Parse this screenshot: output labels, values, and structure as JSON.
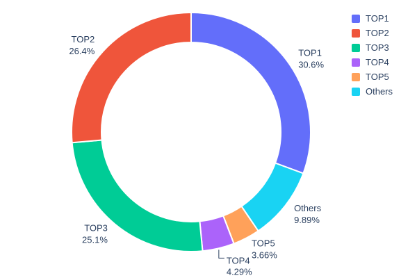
{
  "chart_data": {
    "type": "pie",
    "hole": 0.75,
    "title": "",
    "legend_position": "top-right",
    "label_color": "#2a3f5f",
    "background": "#ffffff",
    "labels": [
      "TOP1",
      "TOP2",
      "TOP3",
      "TOP4",
      "TOP5",
      "Others"
    ],
    "values": [
      30.6,
      26.4,
      25.1,
      4.29,
      3.66,
      9.89
    ],
    "slices": [
      {
        "label": "TOP1",
        "value": 30.6,
        "percent_text": "30.6%",
        "color": "#636efa",
        "connector": false
      },
      {
        "label": "Others",
        "value": 9.89,
        "percent_text": "9.89%",
        "color": "#19d3f3",
        "connector": false
      },
      {
        "label": "TOP5",
        "value": 3.66,
        "percent_text": "3.66%",
        "color": "#ffa15a",
        "connector": false
      },
      {
        "label": "TOP4",
        "value": 4.29,
        "percent_text": "4.29%",
        "color": "#ab63fa",
        "connector": true
      },
      {
        "label": "TOP3",
        "value": 25.1,
        "percent_text": "25.1%",
        "color": "#00cc96",
        "connector": false
      },
      {
        "label": "TOP2",
        "value": 26.4,
        "percent_text": "26.4%",
        "color": "#ef553b",
        "connector": false
      }
    ],
    "legend": [
      {
        "label": "TOP1",
        "color": "#636efa"
      },
      {
        "label": "TOP2",
        "color": "#ef553b"
      },
      {
        "label": "TOP3",
        "color": "#00cc96"
      },
      {
        "label": "TOP4",
        "color": "#ab63fa"
      },
      {
        "label": "TOP5",
        "color": "#ffa15a"
      },
      {
        "label": "Others",
        "color": "#19d3f3"
      }
    ]
  }
}
